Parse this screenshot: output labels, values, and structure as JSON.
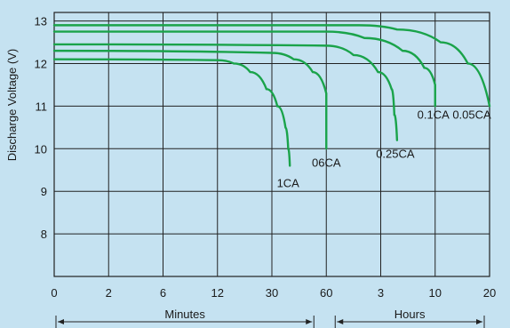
{
  "chart_data": {
    "type": "line",
    "title": "",
    "ylabel": "Discharge Voltage (V)",
    "xlabel": "",
    "ylim": [
      7,
      13.2
    ],
    "y_ticks": [
      8,
      9,
      10,
      11,
      12,
      13
    ],
    "x_ticks": [
      "0",
      "2",
      "6",
      "12",
      "30",
      "60",
      "3",
      "10",
      "20"
    ],
    "x_ranges": [
      {
        "label": "Minutes",
        "from_tick": 0,
        "to_tick": 5
      },
      {
        "label": "Hours",
        "from_tick": 5,
        "to_tick": 8
      }
    ],
    "grid": true,
    "series": [
      {
        "name": "1CA",
        "points": [
          [
            0,
            12.1
          ],
          [
            3,
            12.08
          ],
          [
            3.3,
            12.0
          ],
          [
            3.6,
            11.8
          ],
          [
            3.9,
            11.4
          ],
          [
            4.1,
            11.0
          ],
          [
            4.25,
            10.5
          ],
          [
            4.3,
            10.0
          ],
          [
            4.33,
            9.6
          ]
        ]
      },
      {
        "name": "06CA",
        "points": [
          [
            0,
            12.3
          ],
          [
            4,
            12.25
          ],
          [
            4.4,
            12.1
          ],
          [
            4.75,
            11.8
          ],
          [
            5.0,
            11.3
          ],
          [
            5.0,
            10.0
          ]
        ]
      },
      {
        "name": "0.25CA",
        "points": [
          [
            0,
            12.45
          ],
          [
            5.0,
            12.42
          ],
          [
            5.5,
            12.2
          ],
          [
            5.95,
            11.8
          ],
          [
            6.2,
            11.4
          ],
          [
            6.25,
            10.8
          ],
          [
            6.3,
            10.2
          ]
        ]
      },
      {
        "name": "0.1CA",
        "points": [
          [
            0,
            12.75
          ],
          [
            5.0,
            12.75
          ],
          [
            5.7,
            12.6
          ],
          [
            6.4,
            12.3
          ],
          [
            6.8,
            11.9
          ],
          [
            7.0,
            11.5
          ],
          [
            7.0,
            11.0
          ]
        ]
      },
      {
        "name": "0.05CA",
        "points": [
          [
            0,
            12.9
          ],
          [
            5.6,
            12.9
          ],
          [
            6.3,
            12.8
          ],
          [
            7.1,
            12.5
          ],
          [
            7.6,
            12.0
          ],
          [
            8.0,
            11.0
          ]
        ]
      }
    ],
    "line_color": "#1aa34a"
  }
}
